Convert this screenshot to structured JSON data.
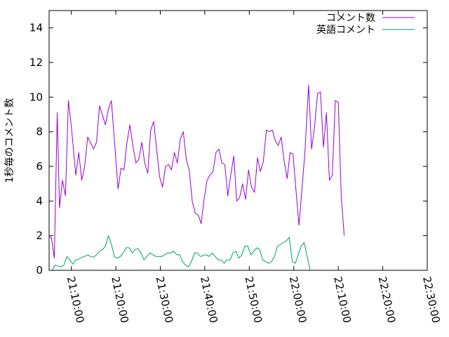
{
  "chart_data": {
    "type": "line",
    "title": "",
    "xlabel": "",
    "ylabel": "1秒毎のコメント数",
    "xlim": [
      "21:05:00",
      "22:30:00"
    ],
    "ylim": [
      0,
      15
    ],
    "x_ticks": [
      "21:10:00",
      "21:20:00",
      "21:30:00",
      "21:40:00",
      "21:50:00",
      "22:00:00",
      "22:10:00",
      "22:20:00",
      "22:30:00"
    ],
    "y_ticks": [
      0,
      2,
      4,
      6,
      8,
      10,
      12,
      14
    ],
    "grid": false,
    "legend": "top-right",
    "series": [
      {
        "name": "コメント数",
        "color": "#9400d3",
        "points": [
          [
            "21:05:00",
            1.9
          ],
          [
            "21:05:30",
            1.9
          ],
          [
            "21:06:10",
            0.7
          ],
          [
            "21:06:50",
            9.1
          ],
          [
            "21:07:20",
            3.6
          ],
          [
            "21:08:00",
            5.2
          ],
          [
            "21:08:40",
            4.3
          ],
          [
            "21:09:20",
            9.8
          ],
          [
            "21:10:00",
            8.3
          ],
          [
            "21:11:00",
            5.5
          ],
          [
            "21:11:40",
            6.8
          ],
          [
            "21:12:20",
            5.2
          ],
          [
            "21:13:00",
            6.0
          ],
          [
            "21:13:40",
            7.7
          ],
          [
            "21:15:00",
            7.0
          ],
          [
            "21:15:40",
            7.4
          ],
          [
            "21:16:20",
            9.5
          ],
          [
            "21:17:40",
            8.4
          ],
          [
            "21:18:20",
            9.3
          ],
          [
            "21:19:00",
            9.8
          ],
          [
            "21:20:30",
            4.7
          ],
          [
            "21:21:10",
            5.9
          ],
          [
            "21:21:50",
            5.8
          ],
          [
            "21:22:30",
            7.4
          ],
          [
            "21:23:10",
            8.4
          ],
          [
            "21:23:50",
            7.2
          ],
          [
            "21:24:30",
            6.2
          ],
          [
            "21:25:10",
            6.4
          ],
          [
            "21:25:50",
            7.4
          ],
          [
            "21:26:30",
            6.2
          ],
          [
            "21:27:10",
            5.6
          ],
          [
            "21:27:50",
            8.1
          ],
          [
            "21:28:30",
            8.6
          ],
          [
            "21:29:50",
            5.4
          ],
          [
            "21:30:30",
            4.8
          ],
          [
            "21:31:10",
            6.0
          ],
          [
            "21:31:50",
            6.1
          ],
          [
            "21:32:30",
            5.8
          ],
          [
            "21:33:10",
            6.8
          ],
          [
            "21:33:50",
            6.2
          ],
          [
            "21:34:30",
            7.6
          ],
          [
            "21:35:10",
            8.0
          ],
          [
            "21:35:50",
            6.4
          ],
          [
            "21:36:30",
            5.8
          ],
          [
            "21:37:10",
            4.0
          ],
          [
            "21:37:50",
            3.3
          ],
          [
            "21:38:30",
            3.2
          ],
          [
            "21:39:10",
            2.7
          ],
          [
            "21:39:50",
            4.1
          ],
          [
            "21:40:30",
            5.2
          ],
          [
            "21:41:10",
            5.5
          ],
          [
            "21:41:50",
            5.7
          ],
          [
            "21:42:30",
            6.8
          ],
          [
            "21:43:10",
            7.0
          ],
          [
            "21:43:50",
            6.2
          ],
          [
            "21:44:30",
            6.1
          ],
          [
            "21:45:10",
            4.3
          ],
          [
            "21:45:50",
            5.5
          ],
          [
            "21:46:30",
            6.6
          ],
          [
            "21:47:10",
            4.0
          ],
          [
            "21:47:50",
            4.2
          ],
          [
            "21:48:30",
            5.0
          ],
          [
            "21:49:10",
            4.1
          ],
          [
            "21:49:50",
            5.8
          ],
          [
            "21:50:30",
            4.8
          ],
          [
            "21:51:10",
            4.5
          ],
          [
            "21:51:50",
            6.5
          ],
          [
            "21:52:30",
            5.7
          ],
          [
            "21:53:10",
            6.3
          ],
          [
            "21:53:50",
            8.1
          ],
          [
            "21:54:30",
            8.0
          ],
          [
            "21:55:10",
            8.1
          ],
          [
            "21:55:50",
            7.5
          ],
          [
            "21:56:30",
            7.2
          ],
          [
            "21:57:10",
            7.7
          ],
          [
            "21:57:50",
            6.3
          ],
          [
            "21:58:30",
            5.3
          ],
          [
            "21:59:10",
            6.8
          ],
          [
            "21:59:50",
            6.7
          ],
          [
            "22:00:30",
            4.6
          ],
          [
            "22:01:10",
            2.6
          ],
          [
            "22:01:50",
            4.7
          ],
          [
            "22:02:30",
            6.8
          ],
          [
            "22:03:20",
            10.7
          ],
          [
            "22:04:00",
            7.0
          ],
          [
            "22:04:40",
            8.3
          ],
          [
            "22:05:20",
            10.2
          ],
          [
            "22:06:00",
            10.3
          ],
          [
            "22:06:40",
            7.1
          ],
          [
            "22:07:20",
            9.1
          ],
          [
            "22:08:00",
            5.2
          ],
          [
            "22:08:40",
            5.5
          ],
          [
            "22:09:20",
            9.8
          ],
          [
            "22:10:00",
            9.7
          ],
          [
            "22:10:40",
            4.3
          ],
          [
            "22:11:20",
            2.0
          ]
        ]
      },
      {
        "name": "英語コメント",
        "color": "#009e73",
        "points": [
          [
            "21:05:00",
            0.0
          ],
          [
            "21:05:40",
            0.0
          ],
          [
            "21:06:20",
            0.3
          ],
          [
            "21:07:00",
            0.25
          ],
          [
            "21:07:40",
            0.2
          ],
          [
            "21:08:20",
            0.3
          ],
          [
            "21:09:00",
            0.8
          ],
          [
            "21:09:40",
            0.6
          ],
          [
            "21:10:20",
            0.35
          ],
          [
            "21:11:00",
            0.6
          ],
          [
            "21:11:40",
            0.65
          ],
          [
            "21:12:20",
            0.75
          ],
          [
            "21:13:00",
            0.8
          ],
          [
            "21:13:40",
            0.9
          ],
          [
            "21:14:20",
            0.8
          ],
          [
            "21:15:00",
            0.75
          ],
          [
            "21:15:40",
            0.9
          ],
          [
            "21:16:20",
            1.1
          ],
          [
            "21:17:00",
            1.2
          ],
          [
            "21:17:40",
            1.4
          ],
          [
            "21:18:20",
            2.0
          ],
          [
            "21:19:00",
            1.5
          ],
          [
            "21:19:40",
            0.8
          ],
          [
            "21:20:20",
            0.7
          ],
          [
            "21:21:00",
            0.8
          ],
          [
            "21:21:40",
            1.0
          ],
          [
            "21:22:20",
            1.3
          ],
          [
            "21:23:00",
            1.3
          ],
          [
            "21:23:40",
            1.0
          ],
          [
            "21:24:20",
            1.2
          ],
          [
            "21:25:00",
            1.25
          ],
          [
            "21:25:40",
            1.0
          ],
          [
            "21:26:20",
            0.6
          ],
          [
            "21:27:00",
            0.8
          ],
          [
            "21:27:40",
            1.0
          ],
          [
            "21:28:20",
            0.9
          ],
          [
            "21:29:00",
            0.8
          ],
          [
            "21:29:40",
            0.8
          ],
          [
            "21:30:20",
            0.8
          ],
          [
            "21:31:00",
            0.9
          ],
          [
            "21:31:40",
            1.0
          ],
          [
            "21:32:20",
            1.0
          ],
          [
            "21:33:00",
            1.1
          ],
          [
            "21:33:40",
            0.9
          ],
          [
            "21:34:20",
            0.9
          ],
          [
            "21:35:00",
            0.5
          ],
          [
            "21:35:40",
            0.3
          ],
          [
            "21:36:20",
            0.2
          ],
          [
            "21:37:00",
            0.5
          ],
          [
            "21:37:40",
            1.0
          ],
          [
            "21:38:20",
            1.0
          ],
          [
            "21:39:00",
            0.8
          ],
          [
            "21:39:40",
            0.85
          ],
          [
            "21:40:20",
            0.9
          ],
          [
            "21:41:00",
            0.8
          ],
          [
            "21:41:40",
            1.0
          ],
          [
            "21:42:20",
            0.8
          ],
          [
            "21:43:00",
            0.6
          ],
          [
            "21:43:40",
            0.6
          ],
          [
            "21:44:20",
            0.4
          ],
          [
            "21:45:00",
            0.6
          ],
          [
            "21:45:40",
            0.6
          ],
          [
            "21:46:20",
            1.0
          ],
          [
            "21:47:00",
            1.1
          ],
          [
            "21:47:40",
            0.7
          ],
          [
            "21:48:20",
            0.9
          ],
          [
            "21:49:00",
            1.4
          ],
          [
            "21:49:40",
            1.4
          ],
          [
            "21:50:20",
            0.9
          ],
          [
            "21:51:00",
            1.1
          ],
          [
            "21:51:40",
            1.3
          ],
          [
            "21:52:20",
            1.2
          ],
          [
            "21:53:00",
            0.6
          ],
          [
            "21:53:40",
            0.5
          ],
          [
            "21:54:20",
            0.4
          ],
          [
            "21:55:00",
            0.5
          ],
          [
            "21:55:40",
            0.8
          ],
          [
            "21:56:20",
            1.4
          ],
          [
            "21:57:00",
            1.5
          ],
          [
            "21:57:40",
            1.6
          ],
          [
            "21:58:20",
            1.7
          ],
          [
            "21:59:00",
            1.9
          ],
          [
            "21:59:40",
            0.5
          ],
          [
            "22:00:20",
            0.4
          ],
          [
            "22:01:00",
            0.9
          ],
          [
            "22:01:40",
            1.4
          ],
          [
            "22:02:20",
            1.6
          ],
          [
            "22:03:00",
            0.8
          ],
          [
            "22:03:40",
            0.0
          ]
        ]
      }
    ]
  }
}
